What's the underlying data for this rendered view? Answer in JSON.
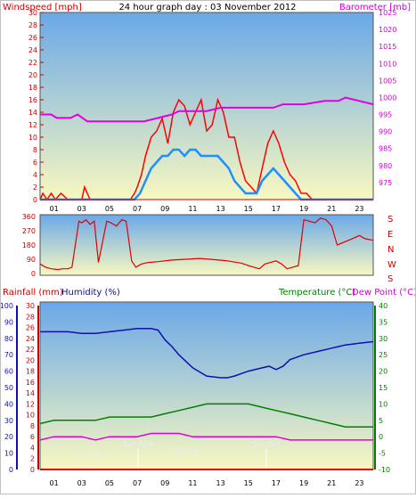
{
  "header": {
    "windspeed_label": "Windspeed [mph]",
    "title": "24 hour graph day : 03 November 2012",
    "barometer_label": "Barometer [mb]"
  },
  "wind_dir_labels": [
    "S",
    "E",
    "N",
    "W",
    "S"
  ],
  "bottom_header": {
    "rainfall_label": "Rainfall (mm)",
    "humidity_label": "Humidity (%)",
    "temperature_label": "Temperature (°C)",
    "dewpoint_label": "Dew Point (°C)"
  },
  "annotations": {
    "lowtide": "Lowtide",
    "sunrise": "Sun Rise",
    "hightide": "Hightide",
    "sunset": "Sun Set"
  },
  "colors": {
    "windspeed": "#ff0000",
    "gust_avg": "#1e90ff",
    "barometer": "#e000e0",
    "wind_dir": "#e00000",
    "humidity": "#1010b0",
    "temperature": "#008000",
    "dewpoint": "#e000e0",
    "rain": "#ff0000",
    "sky_top": "#6aa8e8",
    "sky_bottom": "#f8f8c0"
  },
  "chart_data": [
    {
      "type": "line",
      "name": "wind-barometer",
      "x_ticks": [
        "01",
        "03",
        "05",
        "07",
        "09",
        "11",
        "13",
        "15",
        "17",
        "19",
        "21",
        "23"
      ],
      "y_left": {
        "min": 0,
        "max": 30,
        "ticks": [
          0,
          2,
          4,
          6,
          8,
          10,
          12,
          14,
          16,
          18,
          20,
          22,
          24,
          26,
          28,
          30
        ]
      },
      "y_right": {
        "min": 970,
        "max": 1025,
        "ticks": [
          975,
          980,
          985,
          990,
          995,
          1000,
          1005,
          1010,
          1015,
          1020,
          1025
        ]
      },
      "series": [
        {
          "values_x": [
            0,
            0.2,
            0.5,
            0.8,
            1.1,
            1.5,
            2,
            3.0,
            3.2,
            3.6,
            5,
            6.5,
            6.8,
            7.0,
            7.3,
            7.6,
            8.0,
            8.4,
            8.8,
            9.2,
            9.6,
            10.0,
            10.4,
            10.8,
            11.2,
            11.6,
            12.0,
            12.4,
            12.8,
            13.2,
            13.6,
            14.0,
            14.4,
            14.8,
            15.2,
            15.6,
            16.0,
            16.4,
            16.8,
            17.2,
            17.6,
            18.0,
            18.4,
            18.8,
            19.2,
            19.6,
            20,
            22,
            24
          ],
          "values": [
            0,
            1,
            0,
            1,
            0,
            1,
            0,
            0,
            2,
            0,
            0,
            0,
            1,
            2,
            4,
            7,
            10,
            11,
            13,
            9,
            14,
            16,
            15,
            12,
            14,
            16,
            11,
            12,
            16,
            14,
            10,
            10,
            6,
            3,
            2,
            1,
            5,
            9,
            11,
            9,
            6,
            4,
            3,
            1,
            1,
            0,
            0,
            0,
            0
          ]
        },
        {
          "values_x": [
            0,
            6.8,
            7.2,
            7.6,
            8.0,
            8.4,
            8.8,
            9.2,
            9.6,
            10.0,
            10.4,
            10.8,
            11.2,
            11.6,
            12.0,
            12.4,
            12.8,
            13.2,
            13.6,
            14.0,
            14.4,
            14.8,
            15.2,
            15.6,
            16.0,
            16.4,
            16.8,
            17.2,
            17.6,
            18.0,
            18.4,
            18.8,
            19.2,
            24
          ],
          "values": [
            0,
            0,
            1,
            3,
            5,
            6,
            7,
            7,
            8,
            8,
            7,
            8,
            8,
            7,
            7,
            7,
            7,
            6,
            5,
            3,
            2,
            1,
            1,
            1,
            3,
            4,
            5,
            4,
            3,
            2,
            1,
            0,
            0,
            0
          ]
        },
        {
          "values_x": [
            0,
            0.4,
            0.8,
            1.2,
            2.2,
            2.7,
            3.4,
            4.5,
            5.5,
            6.5,
            7.5,
            8.5,
            9.5,
            10.0,
            11.0,
            12.0,
            13.0,
            14.0,
            15.0,
            16.0,
            16.8,
            17.5,
            18.5,
            19.0,
            20.5,
            21.5,
            22.0,
            23.0,
            24.0
          ],
          "values": [
            995,
            995,
            995,
            994,
            994,
            995,
            993,
            993,
            993,
            993,
            993,
            994,
            995,
            996,
            996,
            996,
            997,
            997,
            997,
            997,
            997,
            998,
            998,
            998,
            999,
            999,
            1000,
            999,
            998
          ]
        }
      ]
    },
    {
      "type": "line",
      "name": "wind-direction",
      "x_ticks": [
        "01",
        "03",
        "05",
        "07",
        "09",
        "11",
        "13",
        "15",
        "17",
        "19",
        "21",
        "23"
      ],
      "y": {
        "min": 0,
        "max": 360,
        "ticks": [
          0,
          90,
          180,
          270,
          360
        ]
      },
      "series": [
        {
          "values_x": [
            0,
            0.4,
            0.8,
            1.3,
            1.6,
            2.0,
            2.3,
            2.8,
            3.0,
            3.3,
            3.6,
            3.9,
            4.2,
            4.8,
            5.1,
            5.5,
            5.9,
            6.2,
            6.6,
            6.9,
            7.3,
            7.8,
            8.5,
            9.5,
            10.5,
            11.5,
            12.5,
            13.5,
            14.5,
            15.0,
            15.4,
            15.8,
            16.2,
            16.6,
            17.0,
            17.4,
            17.8,
            18.2,
            18.6,
            19.0,
            19.4,
            19.8,
            20.2,
            20.6,
            21.0,
            21.4,
            22.5,
            23.0,
            23.4,
            24.0
          ],
          "values": [
            60,
            40,
            30,
            25,
            30,
            30,
            40,
            330,
            320,
            340,
            310,
            330,
            70,
            330,
            320,
            300,
            340,
            330,
            80,
            40,
            60,
            70,
            75,
            85,
            90,
            95,
            88,
            80,
            65,
            50,
            40,
            30,
            60,
            70,
            80,
            60,
            30,
            40,
            50,
            340,
            330,
            320,
            350,
            340,
            300,
            180,
            220,
            240,
            220,
            210
          ]
        }
      ]
    },
    {
      "type": "line",
      "name": "humidity-temperature",
      "x_ticks": [
        "01",
        "03",
        "05",
        "07",
        "09",
        "11",
        "13",
        "15",
        "17",
        "19",
        "21",
        "23"
      ],
      "y_rain": {
        "min": 0,
        "max": 30,
        "ticks": [
          0,
          2,
          4,
          6,
          8,
          10,
          12,
          14,
          16,
          18,
          20,
          22,
          24,
          26,
          28,
          30
        ]
      },
      "y_humidity": {
        "min": 0,
        "max": 100,
        "ticks": [
          0,
          10,
          20,
          30,
          40,
          50,
          60,
          70,
          80,
          90,
          100
        ]
      },
      "y_temp": {
        "min": -10,
        "max": 40,
        "ticks": [
          -10,
          -5,
          0,
          5,
          10,
          15,
          20,
          25,
          30,
          35,
          40
        ]
      },
      "series": [
        {
          "values_x": [
            0,
            1,
            2,
            3,
            4,
            5,
            6,
            7,
            8,
            8.5,
            9,
            9.5,
            10,
            11,
            12,
            13,
            13.5,
            14,
            15,
            16,
            16.5,
            17,
            17.5,
            18,
            19,
            20,
            21,
            22,
            23,
            24
          ],
          "values": [
            84,
            84,
            84,
            83,
            83,
            84,
            85,
            86,
            86,
            85,
            79,
            75,
            70,
            62,
            57,
            56,
            56,
            57,
            60,
            62,
            63,
            61,
            63,
            67,
            70,
            72,
            74,
            76,
            77,
            78
          ]
        },
        {
          "values_x": [
            0,
            1,
            2,
            3,
            4,
            5,
            6,
            7,
            8,
            9,
            10,
            11,
            12,
            13,
            14,
            15,
            16,
            17,
            18,
            19,
            20,
            21,
            22,
            23,
            24
          ],
          "values": [
            4,
            5,
            5,
            5,
            5,
            6,
            6,
            6,
            6,
            7,
            8,
            9,
            10,
            10,
            10,
            10,
            9,
            8,
            7,
            6,
            5,
            4,
            3,
            3,
            3
          ]
        },
        {
          "values_x": [
            0,
            1,
            2,
            3,
            4,
            5,
            6,
            7,
            8,
            9,
            10,
            11,
            12,
            13,
            14,
            15,
            16,
            17,
            18,
            19,
            20,
            21,
            22,
            23,
            24
          ],
          "values": [
            -1,
            0,
            0,
            0,
            -1,
            0,
            0,
            0,
            1,
            1,
            1,
            0,
            0,
            0,
            0,
            0,
            0,
            0,
            -1,
            -1,
            -1,
            -1,
            -1,
            -1,
            -1
          ]
        },
        {
          "values_x": [
            0,
            24
          ],
          "values": [
            0,
            0
          ]
        }
      ]
    }
  ]
}
